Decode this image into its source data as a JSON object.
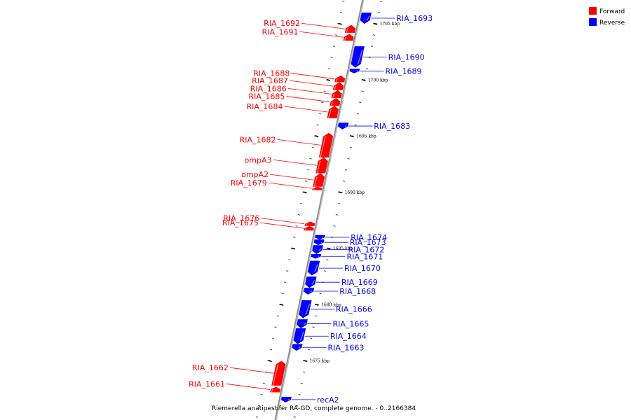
{
  "legend": [
    {
      "label": "Forward",
      "color": "#ff0000"
    },
    {
      "label": "Reverse",
      "color": "#0000ff"
    }
  ],
  "caption": "Riemerella anatipestifer RA-GD, complete genome. - 0..2166384",
  "scale_ticks": [
    {
      "label": "1705 kbp",
      "kbp": 1705
    },
    {
      "label": "1700 kbp",
      "kbp": 1700
    },
    {
      "label": "1695 kbp",
      "kbp": 1695
    },
    {
      "label": "1690 kbp",
      "kbp": 1690
    },
    {
      "label": "1685 kbp",
      "kbp": 1685
    },
    {
      "label": "1680 kbp",
      "kbp": 1680
    },
    {
      "label": "1675 kbp",
      "kbp": 1675
    }
  ],
  "genes": [
    {
      "name": "RIA_1692",
      "strand": "forward",
      "start_kbp": 1704.2,
      "end_kbp": 1704.9
    },
    {
      "name": "RIA_1691",
      "strand": "forward",
      "start_kbp": 1703.5,
      "end_kbp": 1704.1
    },
    {
      "name": "RIA_1693",
      "strand": "reverse",
      "start_kbp": 1705.0,
      "end_kbp": 1706.0
    },
    {
      "name": "RIA_1690",
      "strand": "reverse",
      "start_kbp": 1701.1,
      "end_kbp": 1703.0
    },
    {
      "name": "RIA_1689",
      "strand": "reverse",
      "start_kbp": 1700.6,
      "end_kbp": 1701.0
    },
    {
      "name": "RIA_1688",
      "strand": "forward",
      "start_kbp": 1699.8,
      "end_kbp": 1700.4
    },
    {
      "name": "RIA_1687",
      "strand": "forward",
      "start_kbp": 1699.1,
      "end_kbp": 1699.8
    },
    {
      "name": "RIA_1686",
      "strand": "forward",
      "start_kbp": 1698.4,
      "end_kbp": 1699.1
    },
    {
      "name": "RIA_1685",
      "strand": "forward",
      "start_kbp": 1697.7,
      "end_kbp": 1698.4
    },
    {
      "name": "RIA_1684",
      "strand": "forward",
      "start_kbp": 1696.6,
      "end_kbp": 1697.7
    },
    {
      "name": "RIA_1683",
      "strand": "reverse",
      "start_kbp": 1695.6,
      "end_kbp": 1696.2
    },
    {
      "name": "RIA_1682",
      "strand": "forward",
      "start_kbp": 1693.1,
      "end_kbp": 1695.3
    },
    {
      "name": "ompA3",
      "strand": "forward",
      "start_kbp": 1691.7,
      "end_kbp": 1693.1
    },
    {
      "name": "ompA2",
      "strand": "forward",
      "start_kbp": 1690.5,
      "end_kbp": 1691.7
    },
    {
      "name": "RIA_1679",
      "strand": "forward",
      "start_kbp": 1690.2,
      "end_kbp": 1690.5
    },
    {
      "name": "RIA_1676",
      "strand": "forward",
      "start_kbp": 1687.0,
      "end_kbp": 1687.4
    },
    {
      "name": "RIA_1675",
      "strand": "forward",
      "start_kbp": 1686.6,
      "end_kbp": 1687.0
    },
    {
      "name": "RIA_1674",
      "strand": "reverse",
      "start_kbp": 1685.8,
      "end_kbp": 1686.2
    },
    {
      "name": "RIA_1673",
      "strand": "reverse",
      "start_kbp": 1685.3,
      "end_kbp": 1685.8
    },
    {
      "name": "RIA_1672",
      "strand": "reverse",
      "start_kbp": 1684.5,
      "end_kbp": 1685.3
    },
    {
      "name": "RIA_1671",
      "strand": "reverse",
      "start_kbp": 1684.1,
      "end_kbp": 1684.5
    },
    {
      "name": "RIA_1670",
      "strand": "reverse",
      "start_kbp": 1682.6,
      "end_kbp": 1683.9
    },
    {
      "name": "RIA_1669",
      "strand": "reverse",
      "start_kbp": 1681.5,
      "end_kbp": 1682.5
    },
    {
      "name": "RIA_1668",
      "strand": "reverse",
      "start_kbp": 1680.9,
      "end_kbp": 1681.5
    },
    {
      "name": "RIA_1666",
      "strand": "reverse",
      "start_kbp": 1678.8,
      "end_kbp": 1680.4
    },
    {
      "name": "RIA_1665",
      "strand": "reverse",
      "start_kbp": 1677.9,
      "end_kbp": 1678.7
    },
    {
      "name": "RIA_1664",
      "strand": "reverse",
      "start_kbp": 1676.5,
      "end_kbp": 1677.9
    },
    {
      "name": "RIA_1663",
      "strand": "reverse",
      "start_kbp": 1675.9,
      "end_kbp": 1676.5
    },
    {
      "name": "RIA_1662",
      "strand": "forward",
      "start_kbp": 1672.8,
      "end_kbp": 1675.0
    },
    {
      "name": "RIA_1661",
      "strand": "forward",
      "start_kbp": 1672.2,
      "end_kbp": 1672.7
    },
    {
      "name": "recA2",
      "strand": "reverse",
      "start_kbp": 1671.3,
      "end_kbp": 1671.8
    }
  ]
}
